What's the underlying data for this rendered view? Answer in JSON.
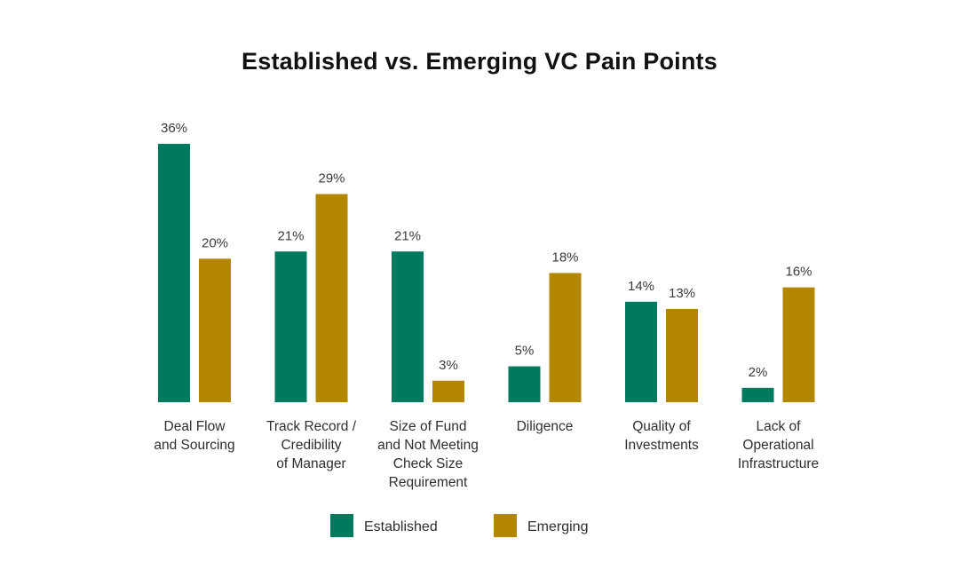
{
  "chart_data": {
    "type": "bar",
    "title": "Established vs. Emerging VC Pain Points",
    "categories": [
      [
        "Deal Flow",
        "and Sourcing"
      ],
      [
        "Track Record /",
        "Credibility",
        "of Manager"
      ],
      [
        "Size of Fund",
        "and Not Meeting",
        "Check Size",
        "Requirement"
      ],
      [
        "Diligence"
      ],
      [
        "Quality of",
        "Investments"
      ],
      [
        "Lack of",
        "Operational",
        "Infrastructure"
      ]
    ],
    "series": [
      {
        "name": "Established",
        "values": [
          36,
          21,
          21,
          5,
          14,
          2
        ],
        "labels": [
          "36%",
          "21%",
          "21%",
          "5%",
          "14%",
          "2%"
        ],
        "color": "#007a5e"
      },
      {
        "name": "Emerging",
        "values": [
          20,
          29,
          3,
          18,
          13,
          16
        ],
        "labels": [
          "20%",
          "29%",
          "3%",
          "18%",
          "13%",
          "16%"
        ],
        "color": "#b38600"
      }
    ],
    "ylim": [
      0,
      36
    ],
    "grid": false,
    "legend": "bottom-center"
  }
}
